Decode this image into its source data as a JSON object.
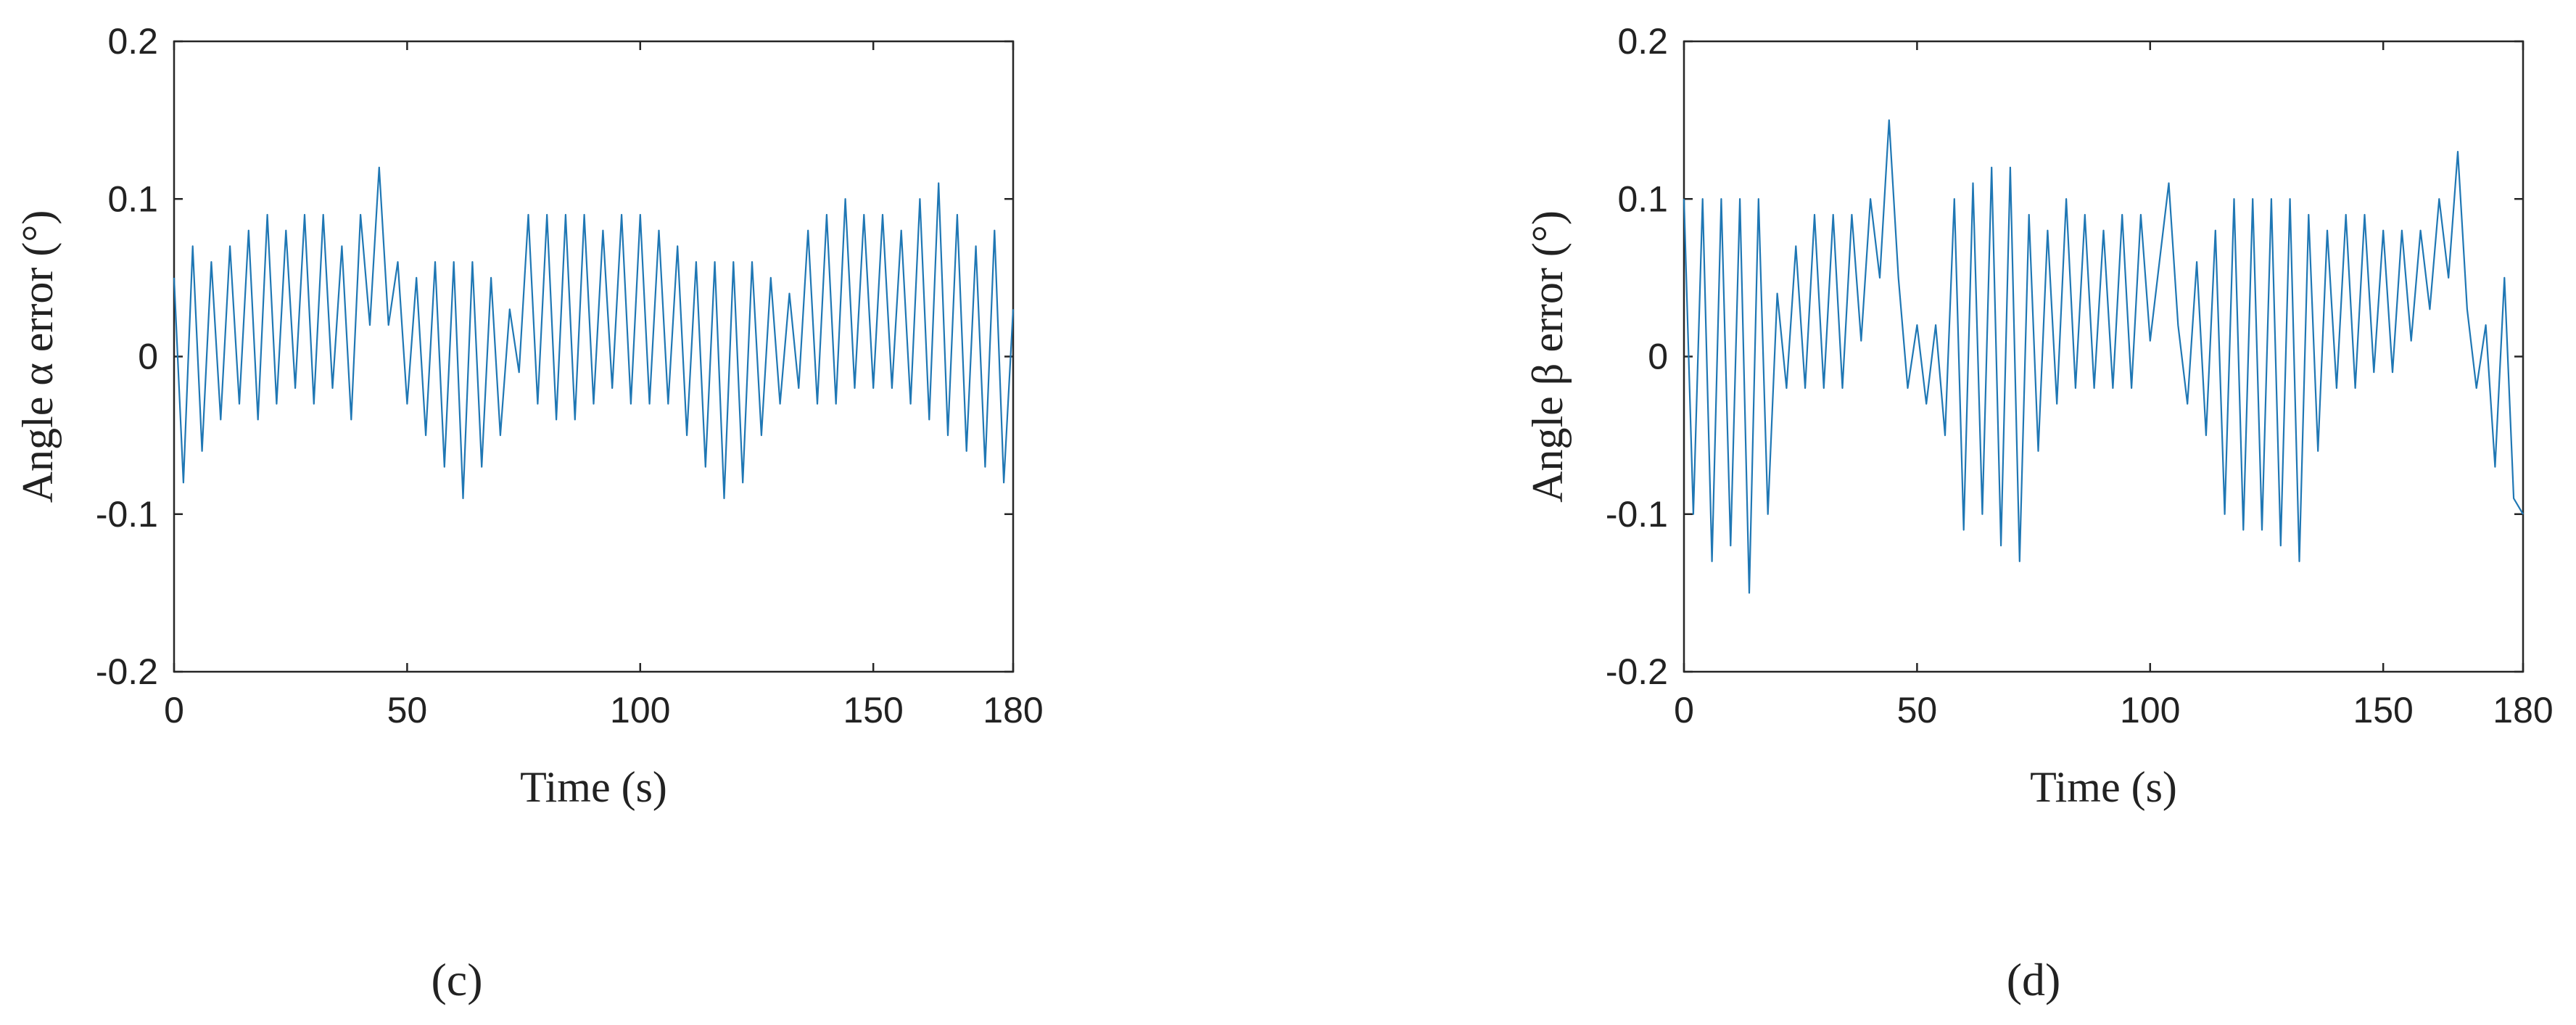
{
  "chart_data": [
    {
      "type": "line",
      "ylabel": "Angle α error (°)",
      "xlabel": "Time (s)",
      "caption": "(c)",
      "color": "#1f77b4",
      "xlim": [
        0,
        180
      ],
      "ylim": [
        -0.2,
        0.2
      ],
      "xticks": [
        0,
        50,
        100,
        150,
        180
      ],
      "yticks": [
        -0.2,
        -0.1,
        0,
        0.1,
        0.2
      ],
      "x": [
        0,
        2,
        4,
        6,
        8,
        10,
        12,
        14,
        16,
        18,
        20,
        22,
        24,
        26,
        28,
        30,
        32,
        34,
        36,
        38,
        40,
        42,
        44,
        46,
        48,
        50,
        52,
        54,
        56,
        58,
        60,
        62,
        64,
        66,
        68,
        70,
        72,
        74,
        76,
        78,
        80,
        82,
        84,
        86,
        88,
        90,
        92,
        94,
        96,
        98,
        100,
        102,
        104,
        106,
        108,
        110,
        112,
        114,
        116,
        118,
        120,
        122,
        124,
        126,
        128,
        130,
        132,
        134,
        136,
        138,
        140,
        142,
        144,
        146,
        148,
        150,
        152,
        154,
        156,
        158,
        160,
        162,
        164,
        166,
        168,
        170,
        172,
        174,
        176,
        178,
        180
      ],
      "values": [
        0.05,
        -0.08,
        0.07,
        -0.06,
        0.06,
        -0.04,
        0.07,
        -0.03,
        0.08,
        -0.04,
        0.09,
        -0.03,
        0.08,
        -0.02,
        0.09,
        -0.03,
        0.09,
        -0.02,
        0.07,
        -0.04,
        0.09,
        0.02,
        0.12,
        0.02,
        0.06,
        -0.03,
        0.05,
        -0.05,
        0.06,
        -0.07,
        0.06,
        -0.09,
        0.06,
        -0.07,
        0.05,
        -0.05,
        0.03,
        -0.01,
        0.09,
        -0.03,
        0.09,
        -0.04,
        0.09,
        -0.04,
        0.09,
        -0.03,
        0.08,
        -0.02,
        0.09,
        -0.03,
        0.09,
        -0.03,
        0.08,
        -0.03,
        0.07,
        -0.05,
        0.06,
        -0.07,
        0.06,
        -0.09,
        0.06,
        -0.08,
        0.06,
        -0.05,
        0.05,
        -0.03,
        0.04,
        -0.02,
        0.08,
        -0.03,
        0.09,
        -0.03,
        0.1,
        -0.02,
        0.09,
        -0.02,
        0.09,
        -0.02,
        0.08,
        -0.03,
        0.1,
        -0.04,
        0.11,
        -0.05,
        0.09,
        -0.06,
        0.07,
        -0.07,
        0.08,
        -0.08,
        0.03
      ]
    },
    {
      "type": "line",
      "ylabel": "Angle β error (°)",
      "xlabel": "Time (s)",
      "caption": "(d)",
      "color": "#1f77b4",
      "xlim": [
        0,
        180
      ],
      "ylim": [
        -0.2,
        0.2
      ],
      "xticks": [
        0,
        50,
        100,
        150,
        180
      ],
      "yticks": [
        -0.2,
        -0.1,
        0,
        0.1,
        0.2
      ],
      "x": [
        0,
        2,
        4,
        6,
        8,
        10,
        12,
        14,
        16,
        18,
        20,
        22,
        24,
        26,
        28,
        30,
        32,
        34,
        36,
        38,
        40,
        42,
        44,
        46,
        48,
        50,
        52,
        54,
        56,
        58,
        60,
        62,
        64,
        66,
        68,
        70,
        72,
        74,
        76,
        78,
        80,
        82,
        84,
        86,
        88,
        90,
        92,
        94,
        96,
        98,
        100,
        102,
        104,
        106,
        108,
        110,
        112,
        114,
        116,
        118,
        120,
        122,
        124,
        126,
        128,
        130,
        132,
        134,
        136,
        138,
        140,
        142,
        144,
        146,
        148,
        150,
        152,
        154,
        156,
        158,
        160,
        162,
        164,
        166,
        168,
        170,
        172,
        174,
        176,
        178,
        180
      ],
      "values": [
        0.1,
        -0.1,
        0.1,
        -0.13,
        0.1,
        -0.12,
        0.1,
        -0.15,
        0.1,
        -0.1,
        0.04,
        -0.02,
        0.07,
        -0.02,
        0.09,
        -0.02,
        0.09,
        -0.02,
        0.09,
        0.01,
        0.1,
        0.05,
        0.15,
        0.05,
        -0.02,
        0.02,
        -0.03,
        0.02,
        -0.05,
        0.1,
        -0.11,
        0.11,
        -0.1,
        0.12,
        -0.12,
        0.12,
        -0.13,
        0.09,
        -0.06,
        0.08,
        -0.03,
        0.1,
        -0.02,
        0.09,
        -0.02,
        0.08,
        -0.02,
        0.09,
        -0.02,
        0.09,
        0.01,
        0.06,
        0.11,
        0.02,
        -0.03,
        0.06,
        -0.05,
        0.08,
        -0.1,
        0.1,
        -0.11,
        0.1,
        -0.11,
        0.1,
        -0.12,
        0.1,
        -0.13,
        0.09,
        -0.06,
        0.08,
        -0.02,
        0.09,
        -0.02,
        0.09,
        -0.01,
        0.08,
        -0.01,
        0.08,
        0.01,
        0.08,
        0.03,
        0.1,
        0.05,
        0.13,
        0.03,
        -0.02,
        0.02,
        -0.07,
        0.05,
        -0.09,
        -0.1
      ]
    }
  ]
}
